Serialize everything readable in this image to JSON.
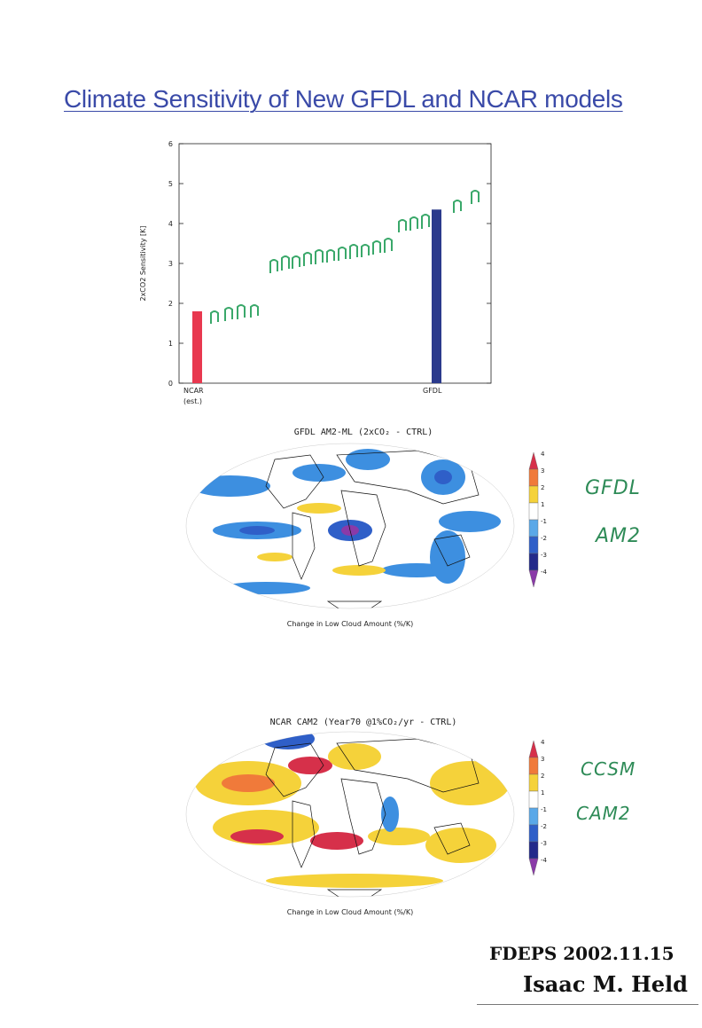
{
  "page": {
    "title": "Climate Sensitivity of New GFDL and NCAR models"
  },
  "chart_data": {
    "type": "bar",
    "categories": [
      "NCAR\n(est.)",
      "GFDL"
    ],
    "category_lines": [
      [
        "NCAR",
        "(est.)"
      ],
      [
        "GFDL"
      ]
    ],
    "values": [
      1.8,
      4.35
    ],
    "colors": [
      "#e8384f",
      "#2b3a8c"
    ],
    "ylabel": "2xCO2 Sensitivity [K]",
    "ylim": [
      0,
      6
    ],
    "yticks": [
      "0",
      "1",
      "2",
      "3",
      "4",
      "5",
      "6"
    ],
    "grid": false
  },
  "maps": [
    {
      "title": "GFDL AM2-ML (2xCO₂ - CTRL)",
      "caption": "Change in Low Cloud Amount (%/K)",
      "note": "GFDL\nAM2",
      "note_lines": [
        "GFDL",
        "AM2"
      ]
    },
    {
      "title": "NCAR CAM2 (Year70 @1%CO₂/yr - CTRL)",
      "caption": "Change in Low Cloud Amount (%/K)",
      "note": "CCSM\nCAM2",
      "note_lines": [
        "CCSM",
        "CAM2"
      ]
    }
  ],
  "colorbar": {
    "labels": [
      "4",
      "3",
      "2",
      "1",
      "-1",
      "-2",
      "-3",
      "-4"
    ],
    "colors": [
      "#d6304a",
      "#f07a3a",
      "#f5d23a",
      "#ffffff",
      "#5aa8e8",
      "#2f5fc8",
      "#232a8a",
      "#8a3aa8"
    ]
  },
  "signature": {
    "line1": "FDEPS 2002.11.15",
    "line2": "Isaac M. Held"
  }
}
